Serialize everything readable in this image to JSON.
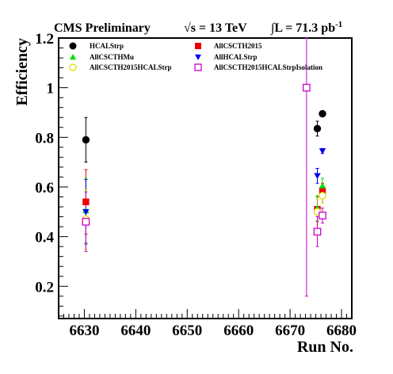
{
  "header": {
    "experiment": "CMS Preliminary",
    "energy": "√s = 13 TeV",
    "lumi": "∫L = 71.3 pb",
    "lumi_exp": "-1"
  },
  "chart_data": {
    "type": "scatter",
    "xlabel": "Run No.",
    "ylabel": "Efficiency",
    "xlim": [
      6625,
      6682
    ],
    "ylim": [
      0.07,
      1.2
    ],
    "xticks": [
      6630,
      6640,
      6650,
      6660,
      6670,
      6680
    ],
    "yticks": [
      0.2,
      0.4,
      0.6,
      0.8,
      1,
      1.2
    ],
    "ytick_labels": [
      "0.2",
      "0.4",
      "0.6",
      "0.8",
      "1",
      "1.2"
    ],
    "legend_position": "top",
    "series": [
      {
        "name": "HCALStrp",
        "color": "#000000",
        "marker": "circle-filled",
        "points": [
          {
            "x": 6630.3,
            "y": 0.79,
            "err": 0.09
          },
          {
            "x": 6675.3,
            "y": 0.835,
            "err": 0.03
          },
          {
            "x": 6676.3,
            "y": 0.895,
            "err": 0.01
          }
        ]
      },
      {
        "name": "AllCSCTH2015",
        "color": "#ee0000",
        "marker": "square-filled",
        "points": [
          {
            "x": 6630.3,
            "y": 0.54,
            "err": 0.13
          },
          {
            "x": 6675.3,
            "y": 0.51,
            "err": 0.05
          },
          {
            "x": 6676.3,
            "y": 0.585,
            "err": 0.03
          }
        ]
      },
      {
        "name": "AllCSCTHMu",
        "color": "#00dd00",
        "marker": "triangle-up-filled",
        "points": [
          {
            "x": 6630.3,
            "y": 0.505,
            "err": 0.13
          },
          {
            "x": 6675.3,
            "y": 0.515,
            "err": 0.05
          },
          {
            "x": 6676.3,
            "y": 0.605,
            "err": 0.03
          }
        ]
      },
      {
        "name": "AllHCALStrp",
        "color": "#0000ee",
        "marker": "triangle-down-filled",
        "points": [
          {
            "x": 6630.3,
            "y": 0.5,
            "err": 0.13
          },
          {
            "x": 6673.2,
            "y": 1.0,
            "err": 0.0
          },
          {
            "x": 6675.3,
            "y": 0.645,
            "err": 0.03
          },
          {
            "x": 6676.3,
            "y": 0.745,
            "err": 0.01
          }
        ]
      },
      {
        "name": "AllCSCTH2015HCALStrp",
        "color": "#dddd00",
        "marker": "circle-open",
        "points": [
          {
            "x": 6630.3,
            "y": 0.47,
            "err": 0.12
          },
          {
            "x": 6675.3,
            "y": 0.5,
            "err": 0.05
          },
          {
            "x": 6676.3,
            "y": 0.565,
            "err": 0.03
          }
        ]
      },
      {
        "name": "AllCSCTH2015HCALStrpIsolation",
        "color": "#cc00cc",
        "marker": "square-open",
        "points": [
          {
            "x": 6630.3,
            "y": 0.46,
            "err": 0.12
          },
          {
            "x": 6673.2,
            "y": 1.0,
            "err": 0.84
          },
          {
            "x": 6675.3,
            "y": 0.42,
            "err": 0.06
          },
          {
            "x": 6676.3,
            "y": 0.485,
            "err": 0.03
          }
        ]
      }
    ]
  }
}
